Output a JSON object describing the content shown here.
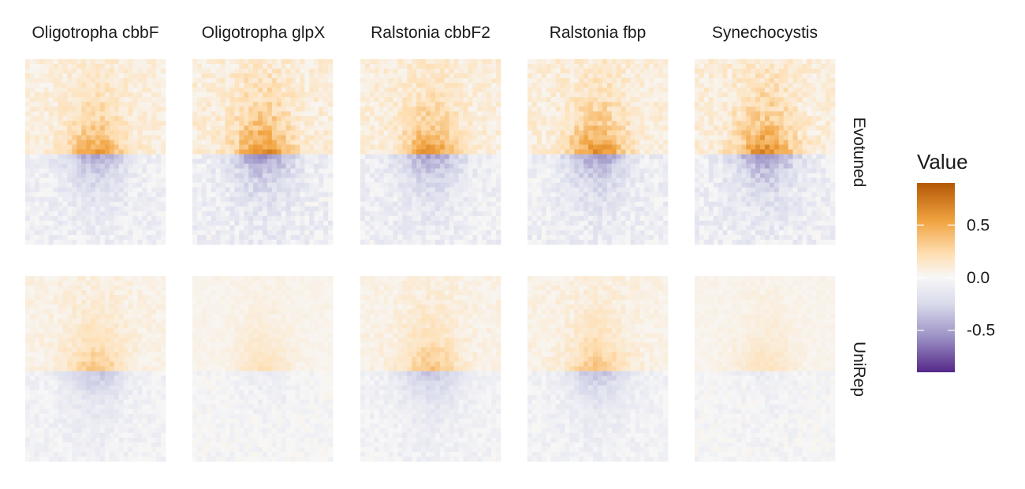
{
  "chart_data": {
    "type": "heatmap",
    "title": "",
    "columns": [
      "Oligotropha cbbF",
      "Oligotropha glpX",
      "Ralstonia cbbF2",
      "Ralstonia fbp",
      "Synechocystis"
    ],
    "rows": [
      "Evotuned",
      "UniRep"
    ],
    "legend": {
      "title": "Value",
      "ticks": [
        0.5,
        0.0,
        -0.5
      ],
      "tick_labels": [
        "0.5",
        "0.0",
        "-0.5"
      ],
      "range": [
        -0.9,
        0.9
      ],
      "placement": "right"
    },
    "color_scale": {
      "high": "#b35806",
      "mid_high": "#f1a340",
      "light_high": "#fee0b6",
      "mid": "#f7f7f7",
      "light_low": "#d8daeb",
      "mid_low": "#998ec3",
      "low": "#542788"
    },
    "grid": {
      "ncols": 30,
      "nrows": 39,
      "split_row": 20
    },
    "panels": [
      {
        "row": "Evotuned",
        "column": "Oligotropha cbbF",
        "intensity": 0.85
      },
      {
        "row": "Evotuned",
        "column": "Oligotropha glpX",
        "intensity": 1.0
      },
      {
        "row": "Evotuned",
        "column": "Ralstonia cbbF2",
        "intensity": 0.9
      },
      {
        "row": "Evotuned",
        "column": "Ralstonia fbp",
        "intensity": 0.95
      },
      {
        "row": "Evotuned",
        "column": "Synechocystis",
        "intensity": 1.0
      },
      {
        "row": "UniRep",
        "column": "Oligotropha cbbF",
        "intensity": 0.6
      },
      {
        "row": "UniRep",
        "column": "Oligotropha glpX",
        "intensity": 0.35
      },
      {
        "row": "UniRep",
        "column": "Ralstonia cbbF2",
        "intensity": 0.6
      },
      {
        "row": "UniRep",
        "column": "Ralstonia fbp",
        "intensity": 0.6
      },
      {
        "row": "UniRep",
        "column": "Synechocystis",
        "intensity": 0.35
      }
    ]
  }
}
